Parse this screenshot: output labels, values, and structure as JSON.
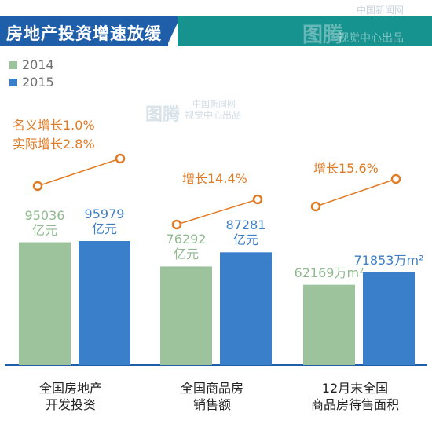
{
  "header": {
    "title": "房地产投资增速放缓",
    "watermark_brand": "图腾",
    "watermark_small": "中国新闻网",
    "watermark_big": "视觉中心出品"
  },
  "legend": [
    "2014",
    "2015"
  ],
  "colors": {
    "2014": "#9cc39b",
    "2015": "#3a7fca",
    "accent": "#e07b25",
    "header_blue": "#1f5ea8",
    "header_teal": "#16928f"
  },
  "chart_data": {
    "type": "bar",
    "categories": [
      "全国房地产开发投资",
      "全国商品房销售额",
      "12月末全国商品房待售面积"
    ],
    "category_lines": [
      [
        "全国房地产",
        "开发投资"
      ],
      [
        "全国商品房",
        "销售额"
      ],
      [
        "12月末全国",
        "商品房待售面积"
      ]
    ],
    "series": [
      {
        "name": "2014",
        "values": [
          95036,
          76292,
          62169
        ]
      },
      {
        "name": "2015",
        "values": [
          95979,
          87281,
          71853
        ]
      }
    ],
    "value_labels": {
      "2014": [
        [
          "95036",
          "亿元"
        ],
        [
          "76292",
          "亿元"
        ],
        [
          "62169万m²"
        ]
      ],
      "2015": [
        [
          "95979",
          "亿元"
        ],
        [
          "87281",
          "亿元"
        ],
        [
          "71853万m²"
        ]
      ]
    },
    "growth_notes": [
      [
        "名义增长1.0%",
        "实际增长2.8%"
      ],
      [
        "增长14.4%"
      ],
      [
        "增长15.6%"
      ]
    ]
  }
}
